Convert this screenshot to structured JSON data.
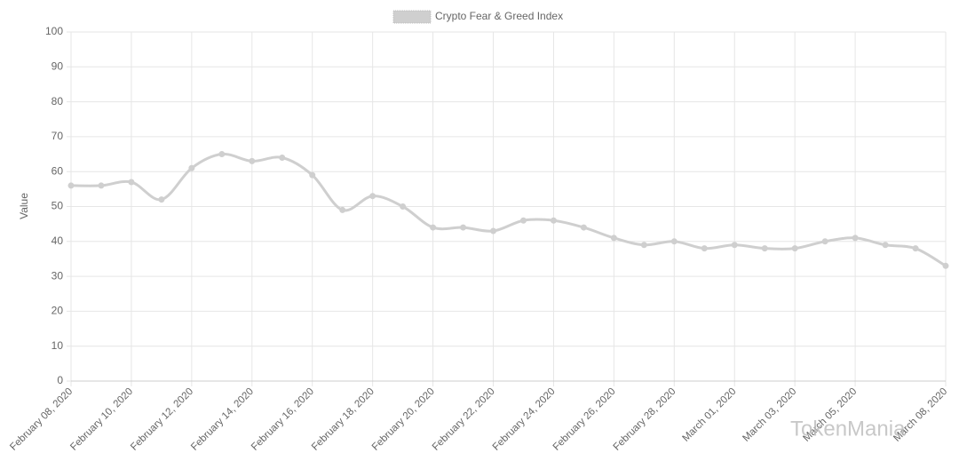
{
  "chart_data": {
    "type": "line",
    "legend_position": "top",
    "y_label": "Value",
    "categories": [
      "February 08, 2020",
      null,
      "February 10, 2020",
      null,
      "February 12, 2020",
      null,
      "February 14, 2020",
      null,
      "February 16, 2020",
      null,
      "February 18, 2020",
      null,
      "February 20, 2020",
      null,
      "February 22, 2020",
      null,
      "February 24, 2020",
      null,
      "February 26, 2020",
      null,
      "February 28, 2020",
      null,
      "March 01, 2020",
      null,
      "March 03, 2020",
      null,
      "March 05, 2020",
      null,
      null,
      "March 08, 2020"
    ],
    "series": [
      {
        "name": "Crypto Fear & Greed Index",
        "color": "#cfcfcf",
        "values": [
          56,
          56,
          57,
          52,
          61,
          65,
          63,
          64,
          59,
          49,
          53,
          50,
          44,
          44,
          43,
          46,
          46,
          44,
          41,
          39,
          40,
          38,
          39,
          38,
          38,
          40,
          41,
          39,
          38,
          33
        ]
      }
    ],
    "ylim": [
      0,
      100
    ],
    "yticks": [
      0,
      10,
      20,
      30,
      40,
      50,
      60,
      70,
      80,
      90,
      100
    ],
    "grid": true,
    "watermark": "TokenMania"
  }
}
